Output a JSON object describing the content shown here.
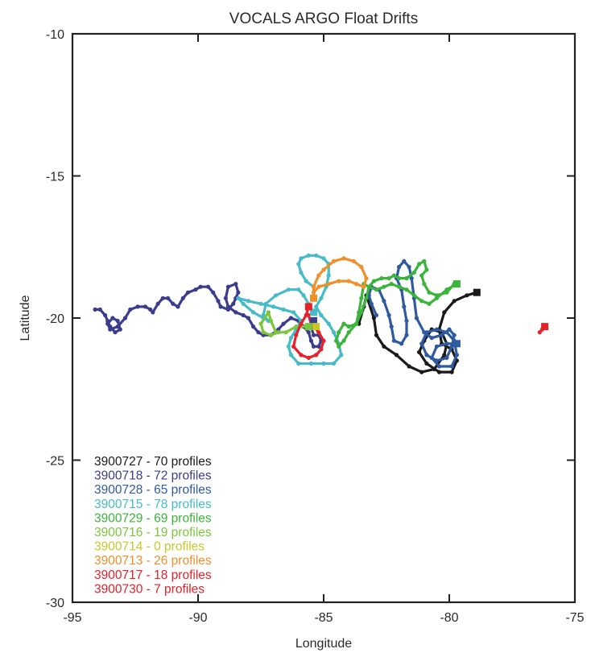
{
  "chart_data": {
    "type": "scatter",
    "title": "VOCALS ARGO Float Drifts",
    "xlabel": "Longitude",
    "ylabel": "Latitude",
    "xlim": [
      -95,
      -75
    ],
    "ylim": [
      -30,
      -10
    ],
    "xticks": [
      -95,
      -90,
      -85,
      -80,
      -75
    ],
    "yticks": [
      -10,
      -15,
      -20,
      -25,
      -30
    ],
    "grid": false,
    "legend_placement": "bottom-left",
    "series": [
      {
        "name": "3900727 - 70 profiles",
        "color": "#1a1a1a",
        "points": [
          [
            -83.6,
            -20.2
          ],
          [
            -83.4,
            -19.6
          ],
          [
            -83.3,
            -19.2
          ],
          [
            -83.0,
            -20.0
          ],
          [
            -82.9,
            -20.6
          ],
          [
            -82.6,
            -21.0
          ],
          [
            -82.1,
            -21.3
          ],
          [
            -81.6,
            -21.7
          ],
          [
            -81.1,
            -21.9
          ],
          [
            -80.6,
            -21.8
          ],
          [
            -80.2,
            -21.3
          ],
          [
            -80.1,
            -20.9
          ],
          [
            -80.3,
            -20.5
          ],
          [
            -80.7,
            -20.4
          ],
          [
            -81.0,
            -20.8
          ],
          [
            -81.2,
            -21.2
          ],
          [
            -80.9,
            -21.6
          ],
          [
            -80.4,
            -21.9
          ],
          [
            -79.9,
            -21.9
          ],
          [
            -79.7,
            -21.5
          ],
          [
            -79.9,
            -21.1
          ],
          [
            -80.3,
            -20.9
          ],
          [
            -80.4,
            -20.4
          ],
          [
            -80.2,
            -19.8
          ],
          [
            -79.8,
            -19.4
          ],
          [
            -79.3,
            -19.2
          ],
          [
            -78.9,
            -19.1
          ]
        ]
      },
      {
        "name": "3900718 - 72 profiles",
        "color": "#3c3c8c",
        "points": [
          [
            -94.1,
            -19.7
          ],
          [
            -93.9,
            -19.7
          ],
          [
            -93.7,
            -19.9
          ],
          [
            -93.6,
            -20.1
          ],
          [
            -93.5,
            -20.3
          ],
          [
            -93.3,
            -20.5
          ],
          [
            -93.1,
            -20.4
          ],
          [
            -93.2,
            -20.1
          ],
          [
            -93.4,
            -20.0
          ],
          [
            -93.6,
            -20.2
          ],
          [
            -93.5,
            -20.4
          ],
          [
            -93.2,
            -20.3
          ],
          [
            -92.9,
            -20.0
          ],
          [
            -92.7,
            -19.7
          ],
          [
            -92.4,
            -19.6
          ],
          [
            -92.1,
            -19.6
          ],
          [
            -91.9,
            -19.7
          ],
          [
            -91.8,
            -19.8
          ],
          [
            -91.6,
            -19.5
          ],
          [
            -91.4,
            -19.3
          ],
          [
            -91.2,
            -19.3
          ],
          [
            -91.0,
            -19.5
          ],
          [
            -90.8,
            -19.6
          ],
          [
            -90.6,
            -19.3
          ],
          [
            -90.4,
            -19.1
          ],
          [
            -90.1,
            -19.0
          ],
          [
            -89.9,
            -18.9
          ],
          [
            -89.6,
            -18.9
          ],
          [
            -89.4,
            -19.1
          ],
          [
            -89.2,
            -19.4
          ],
          [
            -89.1,
            -19.6
          ],
          [
            -88.8,
            -19.7
          ],
          [
            -88.6,
            -19.5
          ],
          [
            -88.5,
            -19.3
          ],
          [
            -88.4,
            -19.1
          ],
          [
            -88.5,
            -18.8
          ],
          [
            -88.8,
            -18.9
          ],
          [
            -88.9,
            -19.3
          ],
          [
            -88.8,
            -19.6
          ],
          [
            -88.5,
            -19.8
          ],
          [
            -88.2,
            -19.9
          ],
          [
            -88.0,
            -20.0
          ],
          [
            -87.8,
            -20.3
          ],
          [
            -87.6,
            -20.5
          ],
          [
            -87.4,
            -20.6
          ],
          [
            -87.1,
            -20.6
          ],
          [
            -86.8,
            -20.4
          ],
          [
            -86.6,
            -20.2
          ],
          [
            -86.3,
            -20.0
          ],
          [
            -86.0,
            -20.1
          ],
          [
            -85.8,
            -20.3
          ],
          [
            -85.6,
            -20.5
          ],
          [
            -85.5,
            -20.8
          ],
          [
            -85.4,
            -21.0
          ],
          [
            -85.2,
            -21.0
          ],
          [
            -85.1,
            -20.8
          ],
          [
            -85.2,
            -20.6
          ],
          [
            -85.4,
            -20.6
          ],
          [
            -85.5,
            -20.3
          ],
          [
            -85.4,
            -20.1
          ]
        ]
      },
      {
        "name": "3900728 - 65 profiles",
        "color": "#2f5aa0",
        "points": [
          [
            -82.9,
            -19.9
          ],
          [
            -83.1,
            -19.5
          ],
          [
            -83.2,
            -19.2
          ],
          [
            -83.1,
            -18.9
          ],
          [
            -82.8,
            -19.0
          ],
          [
            -82.6,
            -19.4
          ],
          [
            -82.4,
            -19.9
          ],
          [
            -82.3,
            -20.3
          ],
          [
            -82.2,
            -20.8
          ],
          [
            -81.9,
            -20.9
          ],
          [
            -81.7,
            -20.6
          ],
          [
            -81.7,
            -20.1
          ],
          [
            -81.8,
            -19.6
          ],
          [
            -81.9,
            -19.0
          ],
          [
            -82.1,
            -18.6
          ],
          [
            -82.0,
            -18.2
          ],
          [
            -81.8,
            -18.0
          ],
          [
            -81.6,
            -18.2
          ],
          [
            -81.5,
            -18.6
          ],
          [
            -81.4,
            -19.3
          ],
          [
            -81.3,
            -20.0
          ],
          [
            -81.0,
            -20.5
          ],
          [
            -80.7,
            -20.7
          ],
          [
            -80.3,
            -20.6
          ],
          [
            -80.0,
            -20.4
          ],
          [
            -79.8,
            -20.6
          ],
          [
            -79.9,
            -21.0
          ],
          [
            -80.1,
            -21.4
          ],
          [
            -80.5,
            -21.5
          ],
          [
            -80.9,
            -21.3
          ],
          [
            -81.1,
            -20.9
          ],
          [
            -80.9,
            -20.5
          ],
          [
            -80.5,
            -20.4
          ],
          [
            -80.1,
            -20.5
          ],
          [
            -79.8,
            -20.8
          ],
          [
            -79.7,
            -21.3
          ],
          [
            -79.9,
            -21.7
          ],
          [
            -80.4,
            -21.7
          ],
          [
            -80.7,
            -21.4
          ],
          [
            -80.5,
            -21.0
          ],
          [
            -80.1,
            -20.9
          ],
          [
            -79.7,
            -20.9
          ]
        ]
      },
      {
        "name": "3900715 - 78 profiles",
        "color": "#46bcc8",
        "points": [
          [
            -85.4,
            -18.9
          ],
          [
            -85.7,
            -18.7
          ],
          [
            -85.9,
            -18.4
          ],
          [
            -86.0,
            -18.1
          ],
          [
            -85.9,
            -17.9
          ],
          [
            -85.6,
            -17.8
          ],
          [
            -85.3,
            -17.8
          ],
          [
            -85.0,
            -17.9
          ],
          [
            -84.8,
            -18.1
          ],
          [
            -84.8,
            -18.5
          ],
          [
            -84.9,
            -18.9
          ],
          [
            -85.1,
            -19.3
          ],
          [
            -85.3,
            -19.6
          ],
          [
            -85.1,
            -19.9
          ],
          [
            -84.8,
            -20.2
          ],
          [
            -84.6,
            -20.5
          ],
          [
            -84.4,
            -20.9
          ],
          [
            -84.3,
            -21.3
          ],
          [
            -84.6,
            -21.6
          ],
          [
            -85.0,
            -21.6
          ],
          [
            -85.5,
            -21.6
          ],
          [
            -86.0,
            -21.6
          ],
          [
            -86.3,
            -21.3
          ],
          [
            -86.4,
            -21.0
          ],
          [
            -86.3,
            -20.7
          ],
          [
            -86.1,
            -20.4
          ],
          [
            -85.9,
            -20.1
          ],
          [
            -86.2,
            -19.8
          ],
          [
            -86.6,
            -19.7
          ],
          [
            -87.0,
            -19.6
          ],
          [
            -87.5,
            -19.5
          ],
          [
            -88.0,
            -19.4
          ],
          [
            -88.4,
            -19.3
          ],
          [
            -88.2,
            -19.5
          ],
          [
            -87.8,
            -19.8
          ],
          [
            -87.4,
            -20.0
          ],
          [
            -87.2,
            -20.1
          ],
          [
            -87.4,
            -19.9
          ],
          [
            -87.3,
            -19.5
          ],
          [
            -86.9,
            -19.2
          ],
          [
            -86.4,
            -19.0
          ],
          [
            -86.0,
            -19.0
          ],
          [
            -85.8,
            -19.2
          ],
          [
            -85.6,
            -19.5
          ],
          [
            -85.4,
            -19.8
          ]
        ]
      },
      {
        "name": "3900729 - 69 profiles",
        "color": "#3bb43b",
        "points": [
          [
            -79.7,
            -18.8
          ],
          [
            -80.1,
            -19.0
          ],
          [
            -80.5,
            -19.3
          ],
          [
            -80.8,
            -19.5
          ],
          [
            -81.1,
            -19.4
          ],
          [
            -81.4,
            -19.2
          ],
          [
            -81.7,
            -19.0
          ],
          [
            -82.0,
            -18.9
          ],
          [
            -82.3,
            -18.8
          ],
          [
            -82.6,
            -18.9
          ],
          [
            -82.9,
            -19.0
          ],
          [
            -83.2,
            -18.9
          ],
          [
            -83.4,
            -18.8
          ],
          [
            -83.5,
            -19.3
          ],
          [
            -83.6,
            -19.8
          ],
          [
            -83.7,
            -20.2
          ],
          [
            -84.0,
            -20.3
          ],
          [
            -84.2,
            -20.2
          ],
          [
            -84.4,
            -20.5
          ],
          [
            -84.5,
            -20.8
          ],
          [
            -84.4,
            -21.0
          ],
          [
            -84.2,
            -20.8
          ],
          [
            -84.0,
            -20.5
          ],
          [
            -83.7,
            -20.2
          ],
          [
            -83.5,
            -19.8
          ],
          [
            -83.3,
            -19.3
          ],
          [
            -83.2,
            -18.9
          ],
          [
            -83.0,
            -18.7
          ],
          [
            -82.7,
            -18.6
          ],
          [
            -82.4,
            -18.6
          ],
          [
            -82.2,
            -18.5
          ],
          [
            -82.0,
            -18.6
          ],
          [
            -81.7,
            -18.6
          ],
          [
            -81.4,
            -18.4
          ],
          [
            -81.2,
            -18.1
          ],
          [
            -81.0,
            -18.0
          ],
          [
            -80.9,
            -18.3
          ],
          [
            -81.1,
            -18.5
          ],
          [
            -81.0,
            -18.8
          ],
          [
            -80.8,
            -19.1
          ],
          [
            -80.5,
            -19.2
          ],
          [
            -80.1,
            -19.1
          ],
          [
            -79.8,
            -18.8
          ]
        ]
      },
      {
        "name": "3900716 - 19 profiles",
        "color": "#7cc63e",
        "points": [
          [
            -85.6,
            -20.3
          ],
          [
            -86.1,
            -20.3
          ],
          [
            -86.5,
            -20.5
          ],
          [
            -86.9,
            -20.5
          ],
          [
            -87.1,
            -20.1
          ],
          [
            -87.2,
            -19.8
          ],
          [
            -87.5,
            -20.2
          ],
          [
            -87.4,
            -20.5
          ],
          [
            -87.1,
            -20.6
          ],
          [
            -86.8,
            -20.5
          ]
        ]
      },
      {
        "name": "3900714 - 0 profiles",
        "color": "#c8c828",
        "points": [
          [
            -85.3,
            -20.3
          ]
        ]
      },
      {
        "name": "3900713 - 26 profiles",
        "color": "#f0902a",
        "points": [
          [
            -85.4,
            -19.3
          ],
          [
            -85.4,
            -18.9
          ],
          [
            -85.2,
            -18.5
          ],
          [
            -85.0,
            -18.3
          ],
          [
            -84.6,
            -18.0
          ],
          [
            -84.2,
            -17.9
          ],
          [
            -83.8,
            -18.0
          ],
          [
            -83.5,
            -18.2
          ],
          [
            -83.3,
            -18.6
          ],
          [
            -83.4,
            -18.9
          ],
          [
            -83.7,
            -18.8
          ],
          [
            -84.0,
            -18.7
          ],
          [
            -84.4,
            -18.7
          ],
          [
            -84.8,
            -18.8
          ],
          [
            -85.2,
            -18.9
          ],
          [
            -85.4,
            -19.1
          ]
        ]
      },
      {
        "name": "3900717 - 18 profiles",
        "color": "#e8202a",
        "points": [
          [
            -85.6,
            -19.6
          ],
          [
            -85.7,
            -19.9
          ],
          [
            -85.9,
            -20.2
          ],
          [
            -86.1,
            -20.6
          ],
          [
            -86.2,
            -21.0
          ],
          [
            -85.9,
            -21.3
          ],
          [
            -85.6,
            -21.4
          ],
          [
            -85.3,
            -21.3
          ],
          [
            -85.1,
            -21.1
          ],
          [
            -85.0,
            -20.8
          ],
          [
            -85.2,
            -20.5
          ],
          [
            -85.5,
            -20.2
          ],
          [
            -85.6,
            -19.9
          ]
        ]
      },
      {
        "name": "3900730 - 7 profiles",
        "color": "#e8202a",
        "points": [
          [
            -76.4,
            -20.5
          ],
          [
            -76.3,
            -20.4
          ],
          [
            -76.2,
            -20.3
          ]
        ]
      }
    ],
    "end_markers": [
      {
        "float": "3900727",
        "lon": -78.9,
        "lat": -19.1,
        "color": "#1a1a1a"
      },
      {
        "float": "3900718",
        "lon": -85.4,
        "lat": -20.1,
        "color": "#3c3c8c"
      },
      {
        "float": "3900728",
        "lon": -79.7,
        "lat": -20.9,
        "color": "#2f5aa0"
      },
      {
        "float": "3900715",
        "lon": -85.4,
        "lat": -19.8,
        "color": "#46bcc8"
      },
      {
        "float": "3900729",
        "lon": -79.7,
        "lat": -18.8,
        "color": "#3bb43b"
      },
      {
        "float": "3900716",
        "lon": -85.6,
        "lat": -20.3,
        "color": "#7cc63e"
      },
      {
        "float": "3900714",
        "lon": -85.3,
        "lat": -20.3,
        "color": "#c8c828"
      },
      {
        "float": "3900713",
        "lon": -85.4,
        "lat": -19.3,
        "color": "#f0902a"
      },
      {
        "float": "3900717",
        "lon": -85.6,
        "lat": -19.6,
        "color": "#e8202a"
      },
      {
        "float": "3900730",
        "lon": -76.2,
        "lat": -20.3,
        "color": "#e8202a"
      }
    ]
  }
}
